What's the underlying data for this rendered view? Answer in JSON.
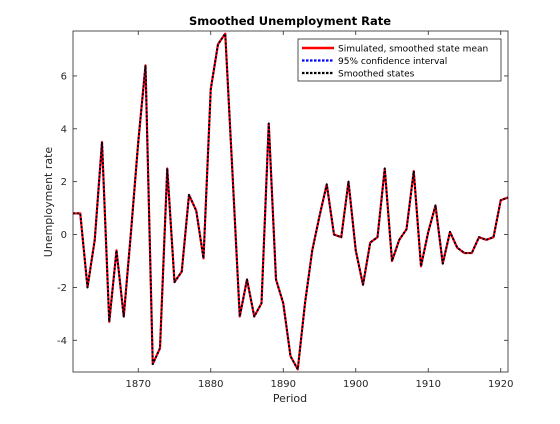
{
  "chart_data": {
    "type": "line",
    "title": "Smoothed Unemployment Rate",
    "xlabel": "Period",
    "ylabel": "Unemployment rate",
    "xlim": [
      1861,
      1921
    ],
    "ylim": [
      -5.2,
      7.7
    ],
    "xticks": [
      1870,
      1880,
      1890,
      1900,
      1910,
      1920
    ],
    "yticks": [
      -4,
      -2,
      0,
      2,
      4,
      6
    ],
    "legend_position": "top-right",
    "grid": false,
    "x": [
      1861,
      1862,
      1863,
      1864,
      1865,
      1866,
      1867,
      1868,
      1869,
      1870,
      1871,
      1872,
      1873,
      1874,
      1875,
      1876,
      1877,
      1878,
      1879,
      1880,
      1881,
      1882,
      1883,
      1884,
      1885,
      1886,
      1887,
      1888,
      1889,
      1890,
      1891,
      1892,
      1893,
      1894,
      1895,
      1896,
      1897,
      1898,
      1899,
      1900,
      1901,
      1902,
      1903,
      1904,
      1905,
      1906,
      1907,
      1908,
      1909,
      1910,
      1911,
      1912,
      1913,
      1914,
      1915,
      1916,
      1917,
      1918,
      1919,
      1920,
      1921
    ],
    "series": [
      {
        "name": "Simulated, smoothed state mean",
        "color": "#ff0000",
        "style": "solid",
        "values": [
          0.8,
          0.8,
          -2.0,
          -0.2,
          3.5,
          -3.3,
          -0.6,
          -3.1,
          0.1,
          3.5,
          6.4,
          -4.9,
          -4.3,
          2.5,
          -1.8,
          -1.4,
          1.5,
          0.9,
          -0.9,
          5.5,
          7.2,
          7.6,
          2.3,
          -3.1,
          -1.7,
          -3.1,
          -2.6,
          4.2,
          -1.7,
          -2.6,
          -4.6,
          -5.1,
          -2.6,
          -0.6,
          0.7,
          1.9,
          0.0,
          -0.1,
          2.0,
          -0.6,
          -1.9,
          -0.3,
          -0.1,
          2.5,
          -1.0,
          -0.2,
          0.2,
          2.4,
          -1.2,
          0.1,
          1.1,
          -1.1,
          0.1,
          -0.5,
          -0.7,
          -0.7,
          -0.1,
          -0.2,
          -0.1,
          1.3,
          1.4
        ]
      },
      {
        "name": "95% confidence interval",
        "color": "#0000ff",
        "style": "dotted",
        "values": [
          0.8,
          0.8,
          -2.0,
          -0.2,
          3.5,
          -3.3,
          -0.6,
          -3.1,
          0.1,
          3.5,
          6.4,
          -4.9,
          -4.3,
          2.5,
          -1.8,
          -1.4,
          1.5,
          0.9,
          -0.9,
          5.5,
          7.2,
          7.6,
          2.3,
          -3.1,
          -1.7,
          -3.1,
          -2.6,
          4.2,
          -1.7,
          -2.6,
          -4.6,
          -5.1,
          -2.6,
          -0.6,
          0.7,
          1.9,
          0.0,
          -0.1,
          2.0,
          -0.6,
          -1.9,
          -0.3,
          -0.1,
          2.5,
          -1.0,
          -0.2,
          0.2,
          2.4,
          -1.2,
          0.1,
          1.1,
          -1.1,
          0.1,
          -0.5,
          -0.7,
          -0.7,
          -0.1,
          -0.2,
          -0.1,
          1.3,
          1.4
        ]
      },
      {
        "name": "Smoothed states",
        "color": "#000000",
        "style": "dotted",
        "values": [
          0.8,
          0.8,
          -2.0,
          -0.2,
          3.5,
          -3.3,
          -0.6,
          -3.1,
          0.1,
          3.5,
          6.4,
          -4.9,
          -4.3,
          2.5,
          -1.8,
          -1.4,
          1.5,
          0.9,
          -0.9,
          5.5,
          7.2,
          7.6,
          2.3,
          -3.1,
          -1.7,
          -3.1,
          -2.6,
          4.2,
          -1.7,
          -2.6,
          -4.6,
          -5.1,
          -2.6,
          -0.6,
          0.7,
          1.9,
          0.0,
          -0.1,
          2.0,
          -0.6,
          -1.9,
          -0.3,
          -0.1,
          2.5,
          -1.0,
          -0.2,
          0.2,
          2.4,
          -1.2,
          0.1,
          1.1,
          -1.1,
          0.1,
          -0.5,
          -0.7,
          -0.7,
          -0.1,
          -0.2,
          -0.1,
          1.3,
          1.4
        ]
      }
    ]
  }
}
